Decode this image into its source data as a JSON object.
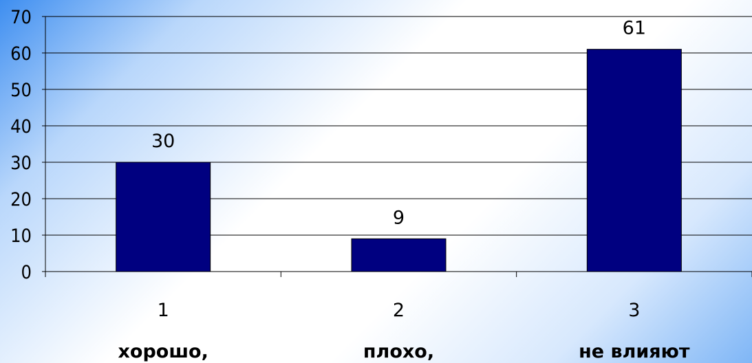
{
  "chart_data": {
    "type": "bar",
    "categories": [
      "1",
      "2",
      "3"
    ],
    "category_sublabels": [
      "хорошо,",
      "плохо,",
      "не влияют"
    ],
    "values": [
      30,
      9,
      61
    ],
    "data_labels": [
      "30",
      "9",
      "61"
    ],
    "ylim": [
      0,
      70
    ],
    "yticks": [
      0,
      10,
      20,
      30,
      40,
      50,
      60,
      70
    ],
    "grid": true,
    "bar_color": "#000080",
    "title": "",
    "xlabel": "",
    "ylabel": ""
  }
}
